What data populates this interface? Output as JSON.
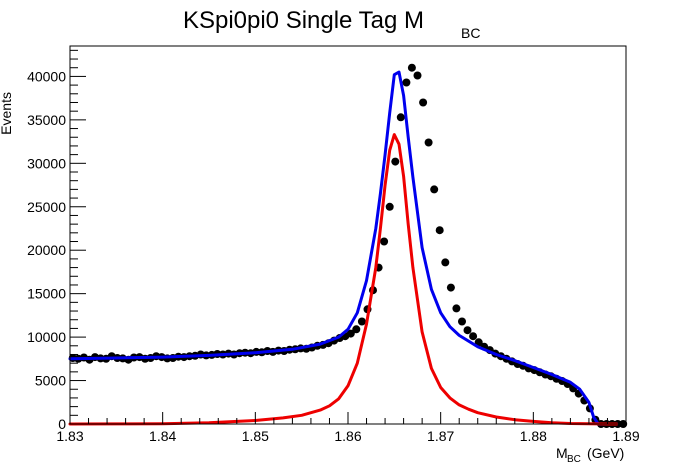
{
  "chart_data": {
    "type": "line",
    "title": "KSpi0pi0 Single Tag M",
    "title_subscript": "BC",
    "xlabel": "M",
    "xlabel_subscript": "BC",
    "xlabel_unit": "(GeV)",
    "ylabel": "Events",
    "xlim": [
      1.83,
      1.89
    ],
    "ylim": [
      0,
      43500
    ],
    "x_ticks": [
      "1.83",
      "1.84",
      "1.85",
      "1.86",
      "1.87",
      "1.88",
      "1.89"
    ],
    "y_ticks": [
      "0",
      "5000",
      "10000",
      "15000",
      "20000",
      "25000",
      "30000",
      "35000",
      "40000"
    ],
    "grid": false,
    "series": [
      {
        "kind": "data-points",
        "color": "#000000",
        "x": [
          1.8303,
          1.8309,
          1.8315,
          1.8321,
          1.8327,
          1.8333,
          1.8339,
          1.8345,
          1.8351,
          1.8357,
          1.8363,
          1.8369,
          1.8375,
          1.8381,
          1.8387,
          1.8393,
          1.8399,
          1.8405,
          1.8411,
          1.8417,
          1.8423,
          1.8429,
          1.8435,
          1.8441,
          1.8447,
          1.8453,
          1.8459,
          1.8465,
          1.8471,
          1.8477,
          1.8483,
          1.8489,
          1.8495,
          1.8501,
          1.8507,
          1.8513,
          1.8519,
          1.8525,
          1.8531,
          1.8537,
          1.8543,
          1.8549,
          1.8555,
          1.8561,
          1.8567,
          1.8573,
          1.8579,
          1.8585,
          1.8591,
          1.8597,
          1.8603,
          1.8609,
          1.8615,
          1.8621,
          1.8627,
          1.8633,
          1.8639,
          1.8645,
          1.8651,
          1.8657,
          1.8663,
          1.8669,
          1.8675,
          1.8681,
          1.8687,
          1.8693,
          1.8699,
          1.8705,
          1.8711,
          1.8717,
          1.8723,
          1.8729,
          1.8735,
          1.8741,
          1.8747,
          1.8753,
          1.8759,
          1.8765,
          1.8771,
          1.8777,
          1.8783,
          1.8789,
          1.8795,
          1.8801,
          1.8807,
          1.8813,
          1.8819,
          1.8825,
          1.8831,
          1.8837,
          1.8843,
          1.8849,
          1.8855,
          1.8861,
          1.8867,
          1.8873,
          1.8879,
          1.8885,
          1.8891,
          1.8897
        ],
        "y": [
          7600,
          7500,
          7650,
          7400,
          7700,
          7550,
          7500,
          7800,
          7600,
          7550,
          7400,
          7650,
          7700,
          7500,
          7600,
          7800,
          7700,
          7550,
          7600,
          7750,
          7700,
          7800,
          7850,
          8000,
          7900,
          7950,
          8050,
          8000,
          8100,
          8000,
          8150,
          8200,
          8150,
          8300,
          8250,
          8400,
          8300,
          8450,
          8400,
          8550,
          8600,
          8700,
          8650,
          8800,
          9000,
          9100,
          9300,
          9600,
          9900,
          10100,
          10400,
          10900,
          11800,
          13200,
          15400,
          18000,
          21000,
          25000,
          30200,
          35300,
          39300,
          41000,
          40100,
          37000,
          32400,
          27000,
          22300,
          18600,
          15700,
          13300,
          11800,
          10800,
          10100,
          9400,
          8900,
          8500,
          8100,
          7800,
          7500,
          7200,
          6900,
          6700,
          6400,
          6200,
          5950,
          5700,
          5500,
          5200,
          4950,
          4600,
          4100,
          3500,
          2700,
          1800,
          500,
          0,
          0,
          0,
          0,
          0
        ]
      },
      {
        "kind": "fit-total",
        "color": "#0000ee",
        "x": [
          1.83,
          1.835,
          1.84,
          1.845,
          1.85,
          1.854,
          1.857,
          1.859,
          1.86,
          1.861,
          1.862,
          1.863,
          1.8635,
          1.864,
          1.8645,
          1.865,
          1.8655,
          1.866,
          1.8665,
          1.867,
          1.868,
          1.869,
          1.87,
          1.871,
          1.872,
          1.874,
          1.876,
          1.878,
          1.88,
          1.882,
          1.884,
          1.885,
          1.886,
          1.8865,
          1.887,
          1.888,
          1.889
        ],
        "y": [
          7500,
          7600,
          7700,
          7900,
          8200,
          8600,
          9200,
          10000,
          10900,
          12800,
          16500,
          22500,
          26500,
          31000,
          35800,
          40200,
          40500,
          37800,
          33000,
          28400,
          20300,
          15500,
          12800,
          11200,
          10200,
          8900,
          8000,
          7300,
          6500,
          5700,
          4800,
          4000,
          2500,
          800,
          0,
          0,
          0
        ]
      },
      {
        "kind": "fit-signal",
        "color": "#ee0000",
        "x": [
          1.83,
          1.835,
          1.84,
          1.845,
          1.85,
          1.853,
          1.855,
          1.857,
          1.858,
          1.859,
          1.86,
          1.861,
          1.862,
          1.863,
          1.8635,
          1.864,
          1.8645,
          1.865,
          1.8655,
          1.866,
          1.8665,
          1.867,
          1.868,
          1.869,
          1.87,
          1.871,
          1.872,
          1.873,
          1.874,
          1.876,
          1.878,
          1.88,
          1.882,
          1.884,
          1.886,
          1.888,
          1.889
        ],
        "y": [
          0,
          10,
          40,
          150,
          400,
          700,
          1000,
          1600,
          2100,
          2900,
          4400,
          7000,
          11500,
          18000,
          22500,
          27500,
          31500,
          33300,
          32200,
          28500,
          23000,
          18000,
          10600,
          6400,
          4200,
          3000,
          2200,
          1700,
          1300,
          800,
          500,
          300,
          150,
          60,
          20,
          0,
          0
        ]
      }
    ]
  }
}
